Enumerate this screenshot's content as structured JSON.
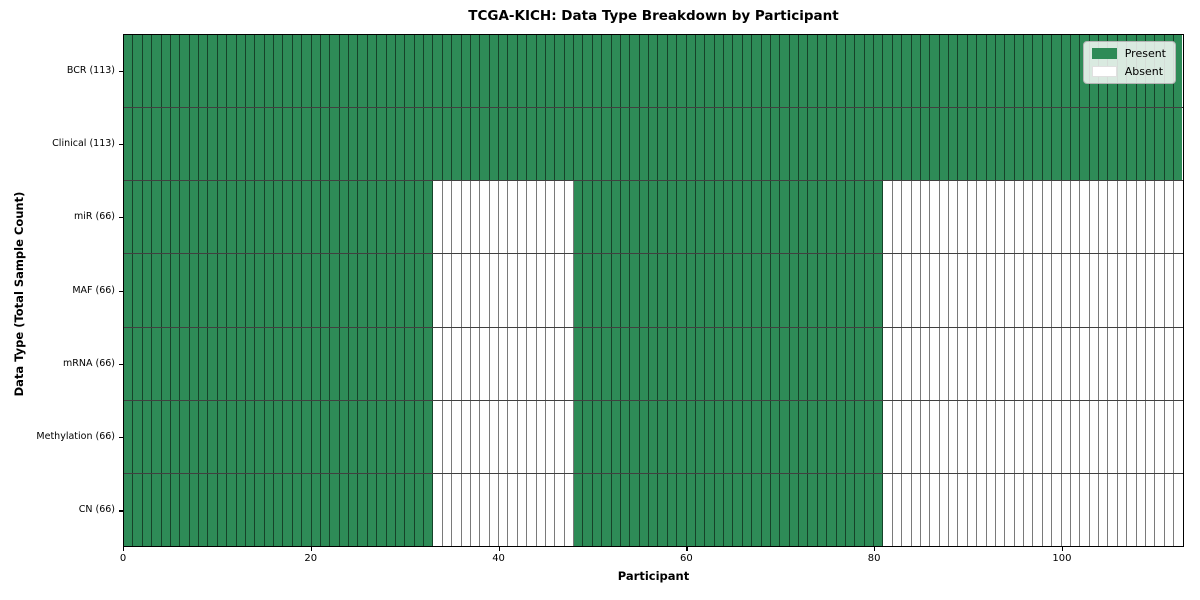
{
  "chart_data": {
    "type": "heatmap",
    "title": "TCGA-KICH: Data Type Breakdown by Participant",
    "xlabel": "Participant",
    "ylabel": "Data Type (Total Sample Count)",
    "n_participants": 113,
    "x_axis": {
      "range": [
        0,
        113
      ],
      "ticks": [
        0,
        20,
        40,
        60,
        80,
        100
      ]
    },
    "rows": [
      {
        "label": "BCR (113)",
        "name": "BCR",
        "present_count": 113,
        "present_ranges": [
          [
            0,
            113
          ]
        ]
      },
      {
        "label": "Clinical (113)",
        "name": "Clinical",
        "present_count": 113,
        "present_ranges": [
          [
            0,
            113
          ]
        ]
      },
      {
        "label": "miR (66)",
        "name": "miR",
        "present_count": 66,
        "present_ranges": [
          [
            0,
            33
          ],
          [
            48,
            81
          ]
        ]
      },
      {
        "label": "MAF (66)",
        "name": "MAF",
        "present_count": 66,
        "present_ranges": [
          [
            0,
            33
          ],
          [
            48,
            81
          ]
        ]
      },
      {
        "label": "mRNA (66)",
        "name": "mRNA",
        "present_count": 66,
        "present_ranges": [
          [
            0,
            33
          ],
          [
            48,
            81
          ]
        ]
      },
      {
        "label": "Methylation (66)",
        "name": "Methylation",
        "present_count": 66,
        "present_ranges": [
          [
            0,
            33
          ],
          [
            48,
            81
          ]
        ]
      },
      {
        "label": "CN (66)",
        "name": "CN",
        "present_count": 66,
        "present_ranges": [
          [
            0,
            33
          ],
          [
            48,
            81
          ]
        ]
      }
    ],
    "legend": {
      "position": "upper right",
      "items": [
        {
          "label": "Present",
          "color": "#2E8B57"
        },
        {
          "label": "Absent",
          "color": "#FFFFFF"
        }
      ]
    },
    "colors": {
      "present": "#2E8B57",
      "absent": "#FFFFFF",
      "cell_edge": "rgba(0,0,0,0.52)",
      "spine": "#000000"
    },
    "grid": false
  }
}
